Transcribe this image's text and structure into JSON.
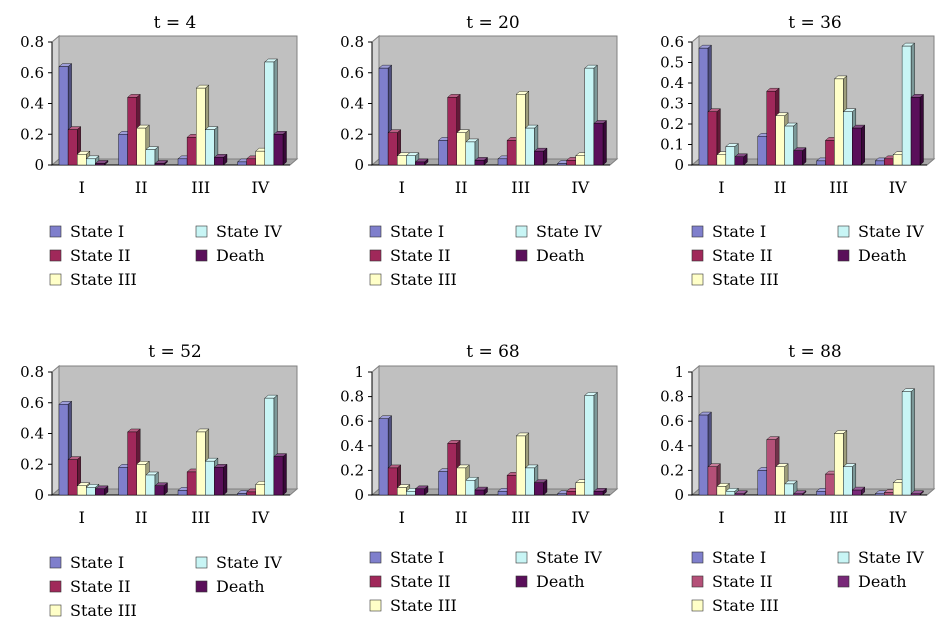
{
  "series_names": [
    "State I",
    "State II",
    "State III",
    "State IV",
    "Death"
  ],
  "categories": [
    "I",
    "II",
    "III",
    "IV"
  ],
  "chart_data": [
    {
      "type": "bar",
      "title": "t = 4",
      "categories": [
        "I",
        "II",
        "III",
        "IV"
      ],
      "ylim": [
        0,
        0.8
      ],
      "yticks": [
        "0",
        "0.2",
        "0.4",
        "0.6",
        "0.8"
      ],
      "ytick_values": [
        0,
        0.2,
        0.4,
        0.6,
        0.8
      ],
      "legend": "bottom",
      "series": [
        {
          "name": "State I",
          "values": [
            0.64,
            0.2,
            0.04,
            0.02
          ]
        },
        {
          "name": "State II",
          "values": [
            0.23,
            0.44,
            0.18,
            0.04
          ]
        },
        {
          "name": "State III",
          "values": [
            0.07,
            0.24,
            0.5,
            0.09
          ]
        },
        {
          "name": "State IV",
          "values": [
            0.04,
            0.1,
            0.23,
            0.67
          ]
        },
        {
          "name": "Death",
          "values": [
            0.01,
            0.01,
            0.05,
            0.2
          ]
        }
      ]
    },
    {
      "type": "bar",
      "title": "t = 20",
      "categories": [
        "I",
        "II",
        "III",
        "IV"
      ],
      "ylim": [
        0,
        0.8
      ],
      "yticks": [
        "0",
        "0.2",
        "0.4",
        "0.6",
        "0.8"
      ],
      "ytick_values": [
        0,
        0.2,
        0.4,
        0.6,
        0.8
      ],
      "legend": "bottom",
      "series": [
        {
          "name": "State I",
          "values": [
            0.63,
            0.16,
            0.04,
            0.01
          ]
        },
        {
          "name": "State II",
          "values": [
            0.21,
            0.44,
            0.16,
            0.03
          ]
        },
        {
          "name": "State III",
          "values": [
            0.06,
            0.21,
            0.46,
            0.06
          ]
        },
        {
          "name": "State IV",
          "values": [
            0.06,
            0.15,
            0.24,
            0.63
          ]
        },
        {
          "name": "Death",
          "values": [
            0.02,
            0.03,
            0.09,
            0.27
          ]
        }
      ]
    },
    {
      "type": "bar",
      "title": "t = 36",
      "categories": [
        "I",
        "II",
        "III",
        "IV"
      ],
      "ylim": [
        0,
        0.6
      ],
      "yticks": [
        "0",
        "0.1",
        "0.2",
        "0.3",
        "0.4",
        "0.5",
        "0.6"
      ],
      "ytick_values": [
        0,
        0.1,
        0.2,
        0.3,
        0.4,
        0.5,
        0.6
      ],
      "legend": "bottom",
      "series": [
        {
          "name": "State I",
          "values": [
            0.57,
            0.14,
            0.02,
            0.02
          ]
        },
        {
          "name": "State II",
          "values": [
            0.26,
            0.36,
            0.12,
            0.03
          ]
        },
        {
          "name": "State III",
          "values": [
            0.05,
            0.24,
            0.42,
            0.05
          ]
        },
        {
          "name": "State IV",
          "values": [
            0.09,
            0.19,
            0.26,
            0.58
          ]
        },
        {
          "name": "Death",
          "values": [
            0.04,
            0.07,
            0.18,
            0.33
          ]
        }
      ]
    },
    {
      "type": "bar",
      "title": "t = 52",
      "categories": [
        "I",
        "II",
        "III",
        "IV"
      ],
      "ylim": [
        0,
        0.8
      ],
      "yticks": [
        "0",
        "0.2",
        "0.4",
        "0.6",
        "0.8"
      ],
      "ytick_values": [
        0,
        0.2,
        0.4,
        0.6,
        0.8
      ],
      "legend": "bottom",
      "series": [
        {
          "name": "State I",
          "values": [
            0.59,
            0.18,
            0.03,
            0.01
          ]
        },
        {
          "name": "State II",
          "values": [
            0.23,
            0.41,
            0.15,
            0.02
          ]
        },
        {
          "name": "State III",
          "values": [
            0.06,
            0.2,
            0.41,
            0.07
          ]
        },
        {
          "name": "State IV",
          "values": [
            0.05,
            0.13,
            0.22,
            0.63
          ]
        },
        {
          "name": "Death",
          "values": [
            0.04,
            0.06,
            0.18,
            0.25
          ]
        }
      ]
    },
    {
      "type": "bar",
      "title": "t = 68",
      "categories": [
        "I",
        "II",
        "III",
        "IV"
      ],
      "ylim": [
        0,
        1
      ],
      "yticks": [
        "0",
        "0.2",
        "0.4",
        "0.6",
        "0.8",
        "1"
      ],
      "ytick_values": [
        0,
        0.2,
        0.4,
        0.6,
        0.8,
        1
      ],
      "legend": "bottom",
      "series": [
        {
          "name": "State I",
          "values": [
            0.62,
            0.19,
            0.03,
            0.01
          ]
        },
        {
          "name": "State II",
          "values": [
            0.22,
            0.42,
            0.16,
            0.03
          ]
        },
        {
          "name": "State III",
          "values": [
            0.06,
            0.22,
            0.48,
            0.1
          ]
        },
        {
          "name": "State IV",
          "values": [
            0.03,
            0.12,
            0.22,
            0.81
          ]
        },
        {
          "name": "Death",
          "values": [
            0.05,
            0.04,
            0.1,
            0.03
          ]
        }
      ]
    },
    {
      "type": "bar",
      "title": "t = 88",
      "categories": [
        "I",
        "II",
        "III",
        "IV"
      ],
      "ylim": [
        0,
        1
      ],
      "yticks": [
        "0",
        "0.2",
        "0.4",
        "0.6",
        "0.8",
        "1"
      ],
      "ytick_values": [
        0,
        0.2,
        0.4,
        0.6,
        0.8,
        1
      ],
      "legend": "bottom",
      "series": [
        {
          "name": "State I",
          "values": [
            0.65,
            0.2,
            0.03,
            0.01
          ]
        },
        {
          "name": "State II",
          "values": [
            0.23,
            0.45,
            0.17,
            0.02
          ]
        },
        {
          "name": "State III",
          "values": [
            0.07,
            0.23,
            0.5,
            0.1
          ]
        },
        {
          "name": "State IV",
          "values": [
            0.03,
            0.09,
            0.23,
            0.84
          ]
        },
        {
          "name": "Death",
          "values": [
            0.01,
            0.01,
            0.04,
            0.01
          ]
        }
      ]
    }
  ],
  "colors": {
    "series_front": [
      "#7f7fcc",
      "#a0285a",
      "#ffffc8",
      "#c8f5f5",
      "#5a0f5a"
    ],
    "series_front_alt": [
      "#7f7fcc",
      "#b45078",
      "#ffffc8",
      "#c8f5f5",
      "#782878"
    ],
    "plot_wall": "#c0c0c0",
    "plot_floor": "#a8a8a8"
  }
}
